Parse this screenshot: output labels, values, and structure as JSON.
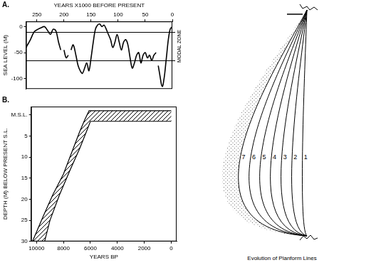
{
  "chart_data": [
    {
      "type": "line",
      "panel": "A.",
      "x_label": "YEARS X1000 BEFORE PRESENT",
      "y_label": "SEA LEVEL (M)",
      "x": [
        270,
        262,
        255,
        248,
        242,
        236,
        230,
        225,
        220,
        215,
        210,
        206,
        204,
        200,
        196,
        192,
        190,
        187,
        183,
        178,
        174,
        170,
        166,
        162,
        158,
        154,
        150,
        146,
        142,
        138,
        134,
        130,
        126,
        122,
        118,
        114,
        110,
        106,
        102,
        98,
        94,
        90,
        86,
        82,
        78,
        74,
        70,
        66,
        62,
        58,
        54,
        50,
        46,
        42,
        38,
        34,
        30,
        28,
        26,
        22,
        20,
        18,
        16,
        14,
        12,
        10,
        8,
        6,
        4,
        2,
        0
      ],
      "values": [
        -40,
        -25,
        -10,
        -5,
        -2,
        0,
        -8,
        -15,
        -5,
        -8,
        -30,
        -45,
        null,
        -45,
        -60,
        -55,
        null,
        -45,
        -35,
        -55,
        -75,
        -85,
        -90,
        -80,
        -70,
        -85,
        -60,
        -30,
        -5,
        3,
        5,
        0,
        3,
        -5,
        -15,
        -25,
        -40,
        -30,
        -15,
        -30,
        -45,
        -30,
        -25,
        -35,
        -60,
        -80,
        -70,
        -55,
        -50,
        -70,
        -55,
        -50,
        -60,
        -55,
        -65,
        -55,
        -50,
        null,
        -75,
        -100,
        -112,
        -115,
        -105,
        -90,
        -70,
        -50,
        -30,
        -15,
        -5,
        -2,
        0
      ],
      "color": "#000000",
      "xlim": [
        270,
        0
      ],
      "xticks": [
        250,
        200,
        150,
        100,
        50,
        0
      ],
      "ylim": [
        -120,
        10
      ],
      "yticks": [
        0,
        -50,
        -100
      ],
      "grid": false,
      "annotations": [
        {
          "label": "MODAL ZONE",
          "bounds": [
            -65,
            -10
          ]
        }
      ]
    },
    {
      "type": "band",
      "panel": "B.",
      "x_label": "YEARS BP",
      "y_label": "DEPTH (M) BELOW PRESENT S.L.",
      "band": {
        "older_edge": {
          "x": [
            10300,
            9500,
            8800,
            8000,
            7400,
            6800,
            6400,
            6100,
            0
          ],
          "y": [
            30,
            24,
            19,
            14,
            9,
            4,
            1,
            -1,
            -1
          ]
        },
        "younger_edge": {
          "x": [
            0,
            6000,
            6300,
            6800,
            7500,
            8300,
            9000,
            9400
          ],
          "y": [
            1.5,
            1.5,
            4,
            8,
            13,
            19,
            25,
            30
          ]
        }
      },
      "color": "#000000",
      "xlim": [
        10400,
        -400
      ],
      "xticks": [
        10000,
        8000,
        6000,
        4000,
        2000,
        0
      ],
      "ylim": [
        30,
        -2
      ],
      "yticks": [
        {
          "value": 0,
          "label": "M.S.L."
        },
        5,
        10,
        15,
        20,
        25,
        30
      ],
      "grid": false
    }
  ],
  "diagram": {
    "curve_labels": [
      "1",
      "2",
      "3",
      "4",
      "5",
      "6",
      "7"
    ],
    "caption": "Evolution of Planform Lines"
  }
}
